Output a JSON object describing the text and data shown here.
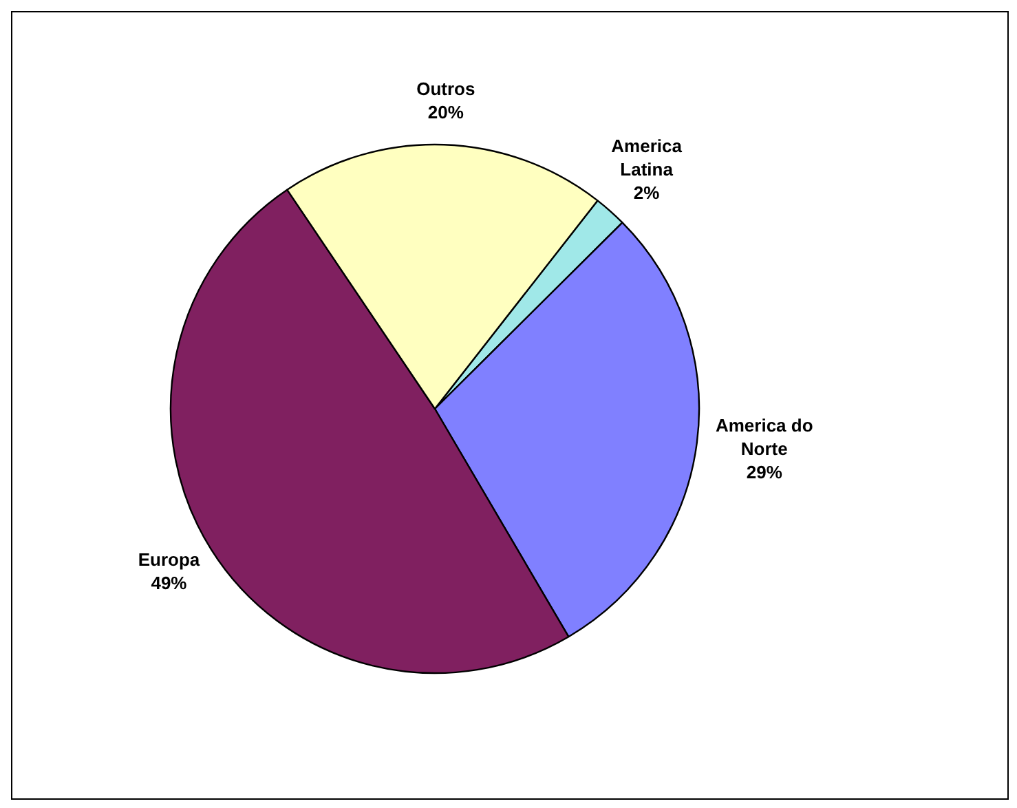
{
  "chart_data": {
    "type": "pie",
    "categories": [
      "America Latina",
      "America do Norte",
      "Europa",
      "Outros"
    ],
    "values": [
      2,
      29,
      49,
      20
    ],
    "colors": [
      "#a0e8e8",
      "#8080ff",
      "#802060",
      "#ffffc0"
    ],
    "value_labels": [
      "2%",
      "29%",
      "49%",
      "20%"
    ],
    "legend": false
  }
}
